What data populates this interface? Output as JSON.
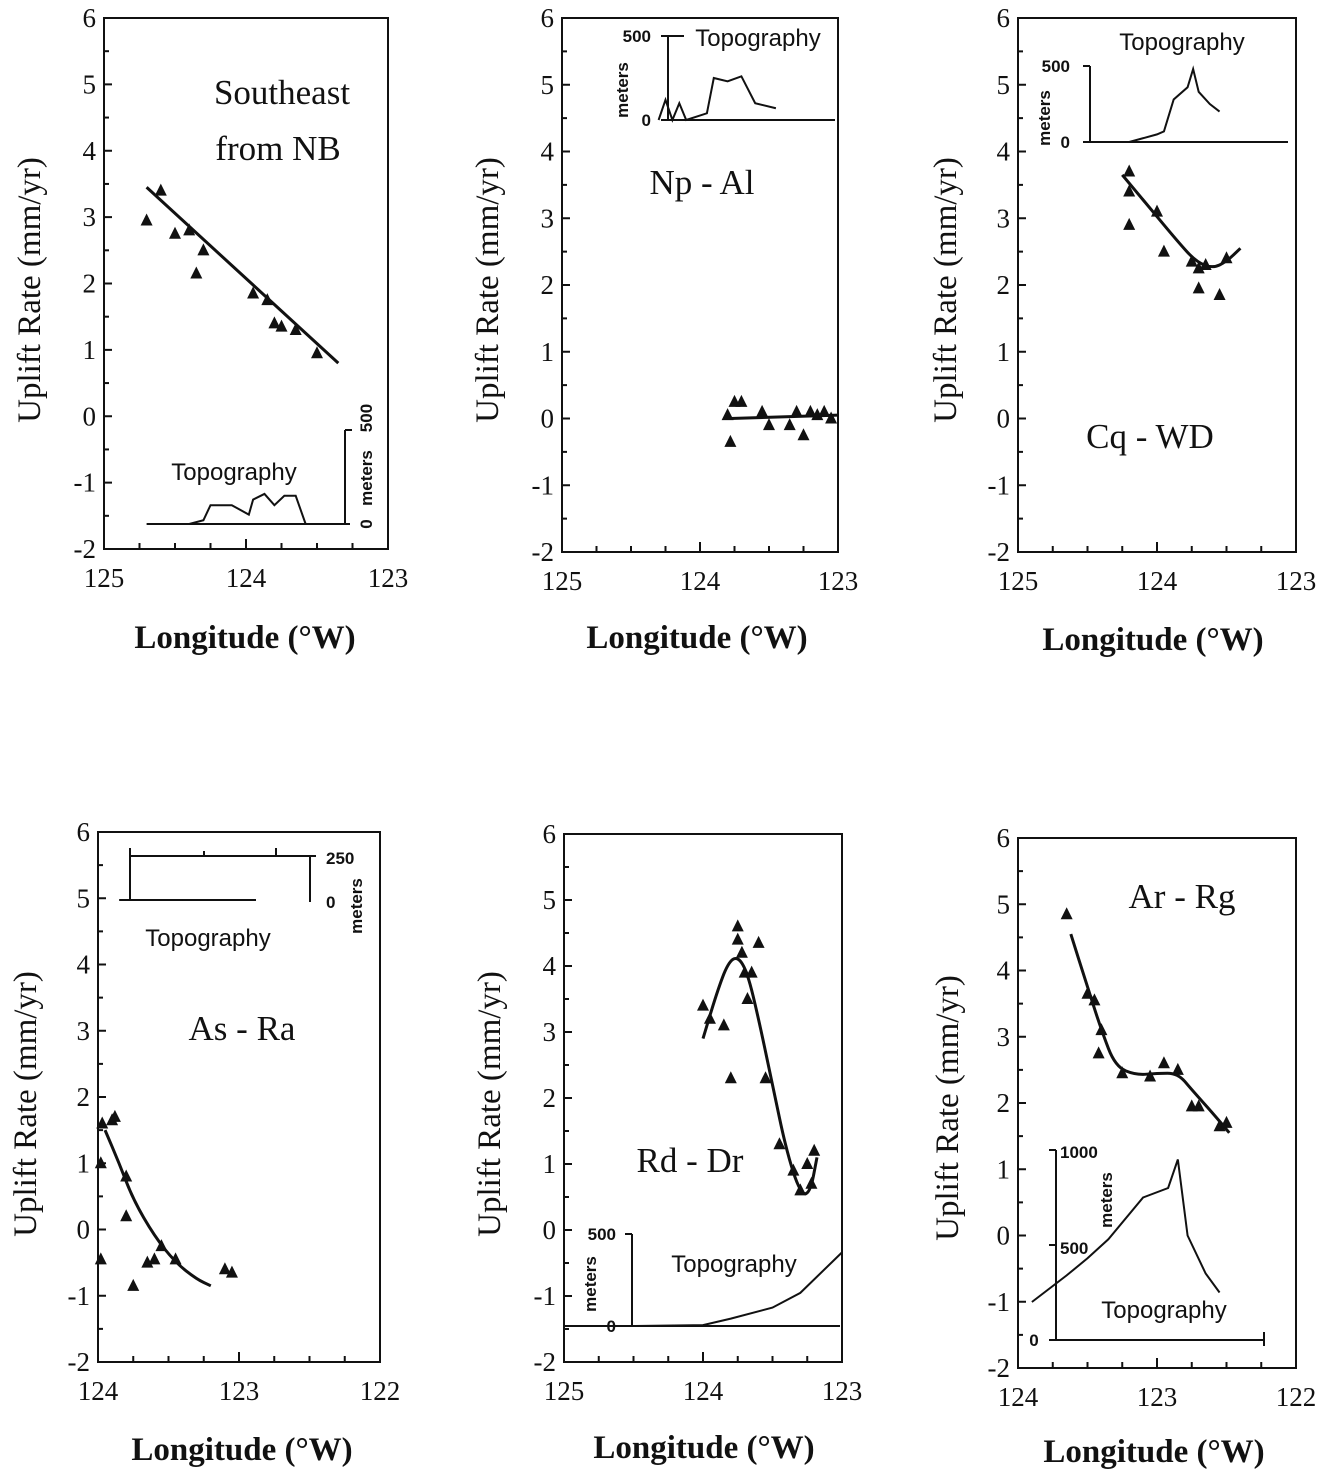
{
  "chart_data": [
    {
      "type": "scatter",
      "label": "Southeast from NB",
      "label_lines": [
        "Southeast",
        "from NB"
      ],
      "xlabel": "Longitude (°W)",
      "ylabel": "Uplift Rate (mm/yr)",
      "xlim": [
        125,
        123
      ],
      "ylim": [
        -2,
        6
      ],
      "xticks": [
        125,
        124,
        123
      ],
      "yticks": [
        -2,
        -1,
        0,
        1,
        2,
        3,
        4,
        5,
        6
      ],
      "points": [
        [
          124.6,
          3.4
        ],
        [
          124.7,
          2.95
        ],
        [
          124.5,
          2.75
        ],
        [
          124.4,
          2.8
        ],
        [
          124.3,
          2.5
        ],
        [
          124.35,
          2.15
        ],
        [
          123.95,
          1.85
        ],
        [
          123.85,
          1.75
        ],
        [
          123.8,
          1.4
        ],
        [
          123.75,
          1.35
        ],
        [
          123.65,
          1.3
        ],
        [
          123.5,
          0.95
        ]
      ],
      "fit": [
        [
          124.7,
          3.45
        ],
        [
          123.35,
          0.8
        ]
      ],
      "topography": {
        "title": "Topography",
        "unit_label": "meters",
        "ticks": [
          "0",
          "500"
        ],
        "ymax": 500,
        "profile": [
          [
            124.7,
            0
          ],
          [
            124.4,
            0
          ],
          [
            124.3,
            20
          ],
          [
            124.25,
            100
          ],
          [
            124.1,
            100
          ],
          [
            123.98,
            50
          ],
          [
            123.95,
            130
          ],
          [
            123.87,
            160
          ],
          [
            123.8,
            100
          ],
          [
            123.73,
            150
          ],
          [
            123.65,
            150
          ],
          [
            123.58,
            0
          ]
        ]
      }
    },
    {
      "type": "scatter",
      "label": "Np - Al",
      "label_lines": [
        "Np - Al"
      ],
      "xlabel": "Longitude (°W)",
      "ylabel": "Uplift Rate (mm/yr)",
      "xlim": [
        125,
        123
      ],
      "ylim": [
        -2,
        6
      ],
      "xticks": [
        125,
        124,
        123
      ],
      "yticks": [
        -2,
        -1,
        0,
        1,
        2,
        3,
        4,
        5,
        6
      ],
      "points": [
        [
          123.8,
          0.05
        ],
        [
          123.75,
          0.25
        ],
        [
          123.7,
          0.25
        ],
        [
          123.78,
          -0.35
        ],
        [
          123.55,
          0.1
        ],
        [
          123.5,
          -0.1
        ],
        [
          123.35,
          -0.1
        ],
        [
          123.3,
          0.1
        ],
        [
          123.25,
          -0.25
        ],
        [
          123.2,
          0.1
        ],
        [
          123.15,
          0.05
        ],
        [
          123.1,
          0.1
        ],
        [
          123.05,
          0.0
        ]
      ],
      "fit": [
        [
          123.78,
          0.0
        ],
        [
          123.0,
          0.05
        ]
      ],
      "topography": {
        "title": "Topography",
        "unit_label": "meters",
        "ticks": [
          "0",
          "500"
        ],
        "ymax": 500,
        "profile": [
          [
            124.3,
            0
          ],
          [
            124.25,
            120
          ],
          [
            124.2,
            0
          ],
          [
            124.15,
            100
          ],
          [
            124.1,
            0
          ],
          [
            123.95,
            40
          ],
          [
            123.9,
            250
          ],
          [
            123.8,
            230
          ],
          [
            123.7,
            260
          ],
          [
            123.6,
            100
          ],
          [
            123.45,
            70
          ]
        ]
      }
    },
    {
      "type": "scatter",
      "label": "Cq - WD",
      "label_lines": [
        "Cq - WD"
      ],
      "xlabel": "Longitude (°W)",
      "ylabel": "Uplift Rate (mm/yr)",
      "xlim": [
        125,
        123
      ],
      "ylim": [
        -2,
        6
      ],
      "xticks": [
        125,
        124,
        123
      ],
      "yticks": [
        -2,
        -1,
        0,
        1,
        2,
        3,
        4,
        5,
        6
      ],
      "points": [
        [
          124.2,
          3.7
        ],
        [
          124.2,
          3.4
        ],
        [
          124.2,
          2.9
        ],
        [
          124.0,
          3.1
        ],
        [
          123.95,
          2.5
        ],
        [
          123.75,
          2.35
        ],
        [
          123.7,
          2.25
        ],
        [
          123.65,
          2.3
        ],
        [
          123.7,
          1.95
        ],
        [
          123.55,
          1.85
        ],
        [
          123.5,
          2.4
        ]
      ],
      "fit": [
        [
          124.25,
          3.65
        ],
        [
          124.05,
          3.15
        ],
        [
          123.85,
          2.65
        ],
        [
          123.72,
          2.35
        ],
        [
          123.6,
          2.25
        ],
        [
          123.5,
          2.35
        ],
        [
          123.4,
          2.55
        ]
      ],
      "topography": {
        "title": "Topography",
        "unit_label": "meters",
        "ticks": [
          "0",
          "500"
        ],
        "ymax": 500,
        "profile": [
          [
            124.2,
            0
          ],
          [
            124.0,
            50
          ],
          [
            123.95,
            70
          ],
          [
            123.88,
            280
          ],
          [
            123.78,
            360
          ],
          [
            123.74,
            480
          ],
          [
            123.7,
            330
          ],
          [
            123.62,
            250
          ],
          [
            123.55,
            200
          ]
        ]
      }
    },
    {
      "type": "scatter",
      "label": "As - Ra",
      "label_lines": [
        "As - Ra"
      ],
      "xlabel": "Longitude (°W)",
      "ylabel": "Uplift Rate (mm/yr)",
      "xlim": [
        124,
        122
      ],
      "ylim": [
        -2,
        6
      ],
      "xticks": [
        124,
        123,
        122
      ],
      "yticks": [
        -2,
        -1,
        0,
        1,
        2,
        3,
        4,
        5,
        6
      ],
      "points": [
        [
          123.97,
          1.6
        ],
        [
          123.9,
          1.65
        ],
        [
          123.88,
          1.7
        ],
        [
          123.98,
          1.0
        ],
        [
          123.98,
          -0.45
        ],
        [
          123.8,
          0.8
        ],
        [
          123.8,
          0.2
        ],
        [
          123.75,
          -0.85
        ],
        [
          123.65,
          -0.5
        ],
        [
          123.6,
          -0.45
        ],
        [
          123.55,
          -0.25
        ],
        [
          123.45,
          -0.45
        ],
        [
          123.1,
          -0.6
        ],
        [
          123.05,
          -0.65
        ]
      ],
      "fit": [
        [
          123.95,
          1.5
        ],
        [
          123.85,
          1.0
        ],
        [
          123.75,
          0.45
        ],
        [
          123.6,
          -0.1
        ],
        [
          123.45,
          -0.5
        ],
        [
          123.3,
          -0.75
        ],
        [
          123.2,
          -0.85
        ]
      ],
      "topography": {
        "title": "Topography",
        "unit_label": "meters",
        "ticks": [
          "0",
          "250"
        ],
        "ymax": 250,
        "profile": [
          [
            123.85,
            0
          ],
          [
            123.4,
            0
          ]
        ]
      }
    },
    {
      "type": "scatter",
      "label": "Rd - Dr",
      "label_lines": [
        "Rd - Dr"
      ],
      "xlabel": "Longitude (°W)",
      "ylabel": "Uplift Rate (mm/yr)",
      "xlim": [
        125,
        123
      ],
      "ylim": [
        -2,
        6
      ],
      "xticks": [
        125,
        124,
        123
      ],
      "yticks": [
        -2,
        -1,
        0,
        1,
        2,
        3,
        4,
        5,
        6
      ],
      "points": [
        [
          124.0,
          3.4
        ],
        [
          123.95,
          3.2
        ],
        [
          123.85,
          3.1
        ],
        [
          123.8,
          2.3
        ],
        [
          123.75,
          4.6
        ],
        [
          123.75,
          4.4
        ],
        [
          123.72,
          4.2
        ],
        [
          123.7,
          3.9
        ],
        [
          123.68,
          3.5
        ],
        [
          123.65,
          3.9
        ],
        [
          123.6,
          4.35
        ],
        [
          123.55,
          2.3
        ],
        [
          123.45,
          1.3
        ],
        [
          123.35,
          0.9
        ],
        [
          123.3,
          0.6
        ],
        [
          123.25,
          1.0
        ],
        [
          123.22,
          0.7
        ],
        [
          123.2,
          1.2
        ]
      ],
      "fit": [
        [
          124.0,
          2.9
        ],
        [
          123.9,
          3.6
        ],
        [
          123.82,
          4.05
        ],
        [
          123.75,
          4.15
        ],
        [
          123.68,
          3.9
        ],
        [
          123.6,
          3.2
        ],
        [
          123.5,
          2.2
        ],
        [
          123.4,
          1.2
        ],
        [
          123.3,
          0.55
        ],
        [
          123.23,
          0.55
        ],
        [
          123.18,
          1.1
        ]
      ],
      "topography": {
        "title": "Topography",
        "unit_label": "meters",
        "ticks": [
          "0",
          "500"
        ],
        "ymax": 500,
        "profile": [
          [
            125.0,
            0
          ],
          [
            124.5,
            0
          ],
          [
            124.0,
            5
          ],
          [
            123.8,
            40
          ],
          [
            123.5,
            100
          ],
          [
            123.3,
            180
          ],
          [
            123.0,
            400
          ]
        ]
      }
    },
    {
      "type": "scatter",
      "label": "Ar - Rg",
      "label_lines": [
        "Ar - Rg"
      ],
      "xlabel": "Longitude (°W)",
      "ylabel": "Uplift Rate (mm/yr)",
      "xlim": [
        124,
        122
      ],
      "ylim": [
        -2,
        6
      ],
      "xticks": [
        124,
        123,
        122
      ],
      "yticks": [
        -2,
        -1,
        0,
        1,
        2,
        3,
        4,
        5,
        6
      ],
      "points": [
        [
          123.65,
          4.85
        ],
        [
          123.5,
          3.65
        ],
        [
          123.45,
          3.55
        ],
        [
          123.4,
          3.1
        ],
        [
          123.42,
          2.75
        ],
        [
          123.25,
          2.45
        ],
        [
          123.05,
          2.4
        ],
        [
          122.95,
          2.6
        ],
        [
          122.85,
          2.5
        ],
        [
          122.75,
          1.95
        ],
        [
          122.7,
          1.95
        ],
        [
          122.55,
          1.65
        ],
        [
          122.5,
          1.7
        ]
      ],
      "fit": [
        [
          123.62,
          4.55
        ],
        [
          123.5,
          3.75
        ],
        [
          123.4,
          3.1
        ],
        [
          123.3,
          2.55
        ],
        [
          123.15,
          2.42
        ],
        [
          123.0,
          2.45
        ],
        [
          122.85,
          2.45
        ],
        [
          122.75,
          2.2
        ],
        [
          122.6,
          1.85
        ],
        [
          122.48,
          1.55
        ]
      ],
      "topography": {
        "title": "Topography",
        "unit_label": "meters",
        "ticks": [
          "0",
          "500",
          "1000"
        ],
        "ymax": 1000,
        "profile": [
          [
            123.9,
            200
          ],
          [
            123.65,
            340
          ],
          [
            123.5,
            430
          ],
          [
            123.35,
            530
          ],
          [
            123.1,
            750
          ],
          [
            122.92,
            800
          ],
          [
            122.85,
            950
          ],
          [
            122.78,
            550
          ],
          [
            122.65,
            350
          ],
          [
            122.55,
            250
          ]
        ]
      }
    }
  ]
}
